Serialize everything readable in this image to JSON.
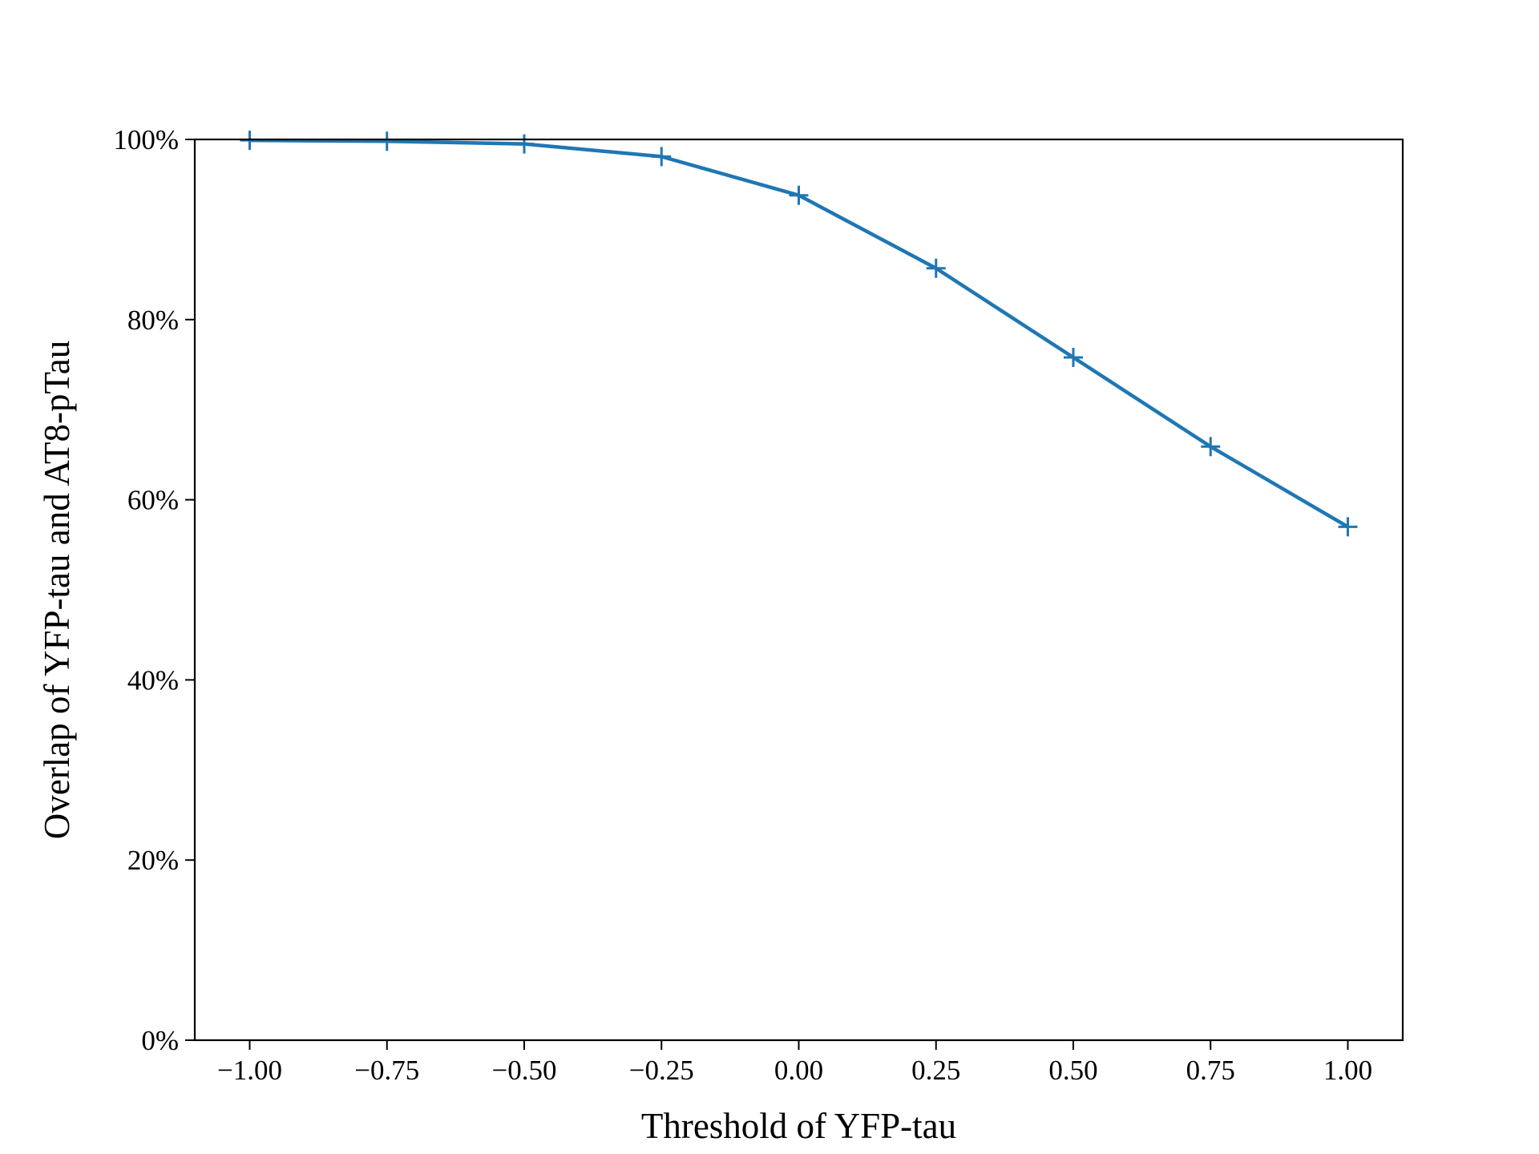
{
  "chart_data": {
    "type": "line",
    "title": "",
    "xlabel": "Threshold of YFP-tau",
    "ylabel": "Overlap of YFP-tau and AT8-pTau",
    "xlim": [
      -1.1,
      1.1
    ],
    "ylim": [
      0,
      100
    ],
    "x_ticks": [
      -1.0,
      -0.75,
      -0.5,
      -0.25,
      0.0,
      0.25,
      0.5,
      0.75,
      1.0
    ],
    "x_tick_labels": [
      "−1.00",
      "−0.75",
      "−0.50",
      "−0.25",
      "0.00",
      "0.25",
      "0.50",
      "0.75",
      "1.00"
    ],
    "y_ticks": [
      0,
      20,
      40,
      60,
      80,
      100
    ],
    "y_tick_labels": [
      "0%",
      "20%",
      "40%",
      "60%",
      "80%",
      "100%"
    ],
    "grid": false,
    "legend": "none",
    "marker": "plus",
    "series": [
      {
        "color": "#1f77b4",
        "x": [
          -1.0,
          -0.75,
          -0.5,
          -0.25,
          0.0,
          0.25,
          0.5,
          0.75,
          1.0
        ],
        "y": [
          99.9,
          99.8,
          99.5,
          98.1,
          93.8,
          85.7,
          75.8,
          65.9,
          57.0
        ]
      }
    ]
  }
}
